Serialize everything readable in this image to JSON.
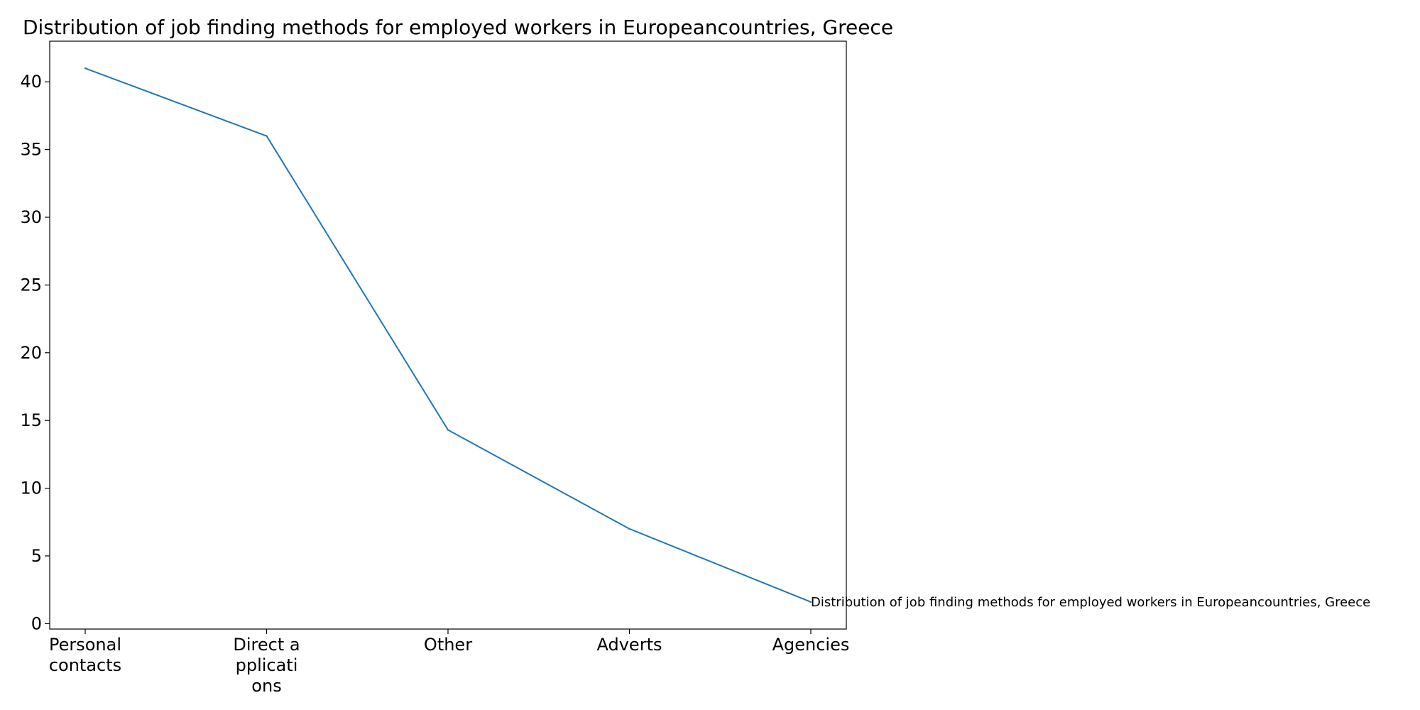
{
  "chart_data": {
    "type": "line",
    "title": "Distribution of job finding methods for employed workers in Europeancountries, Greece",
    "categories": [
      "Personal contacts",
      "Direct a pplicati ons",
      "Other",
      "Adverts",
      "Agencies"
    ],
    "category_label_lines": [
      [
        "Personal",
        "contacts"
      ],
      [
        "Direct a",
        "pplicati",
        "ons"
      ],
      [
        "Other"
      ],
      [
        "Adverts"
      ],
      [
        "Agencies"
      ]
    ],
    "series": [
      {
        "name": "Distribution of job finding methods for employed workers in Europeancountries, Greece",
        "values": [
          41.0,
          36.0,
          14.3,
          7.0,
          1.6
        ],
        "color": "#1f77b4"
      }
    ],
    "xlabel": "",
    "ylabel": "",
    "ylim": [
      -0.4,
      43.0
    ],
    "yticks": [
      0,
      5,
      10,
      15,
      20,
      25,
      30,
      35,
      40
    ],
    "grid": false,
    "legend": "none"
  }
}
